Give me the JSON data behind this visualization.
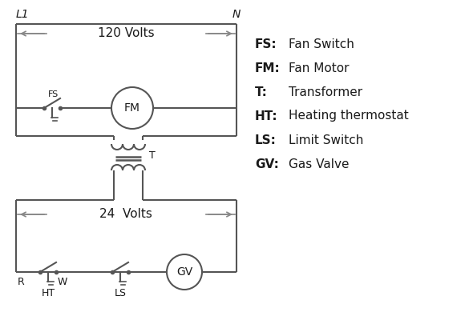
{
  "background_color": "#ffffff",
  "line_color": "#555555",
  "text_color": "#1a1a1a",
  "arrow_color": "#888888",
  "legend_items": [
    [
      "FS:",
      "Fan Switch"
    ],
    [
      "FM:",
      "Fan Motor"
    ],
    [
      "T:",
      "Transformer"
    ],
    [
      "HT:",
      "Heating thermostat"
    ],
    [
      "LS:",
      "Limit Switch"
    ],
    [
      "GV:",
      "Gas Valve"
    ]
  ],
  "volts_120_label": "120 Volts",
  "volts_24_label": "24  Volts",
  "L1_label": "L1",
  "N_label": "N",
  "T_label": "T",
  "R_label": "R",
  "W_label": "W",
  "HT_label": "HT",
  "LS_label": "LS",
  "FS_label": "FS",
  "FM_label": "FM",
  "GV_label": "GV"
}
